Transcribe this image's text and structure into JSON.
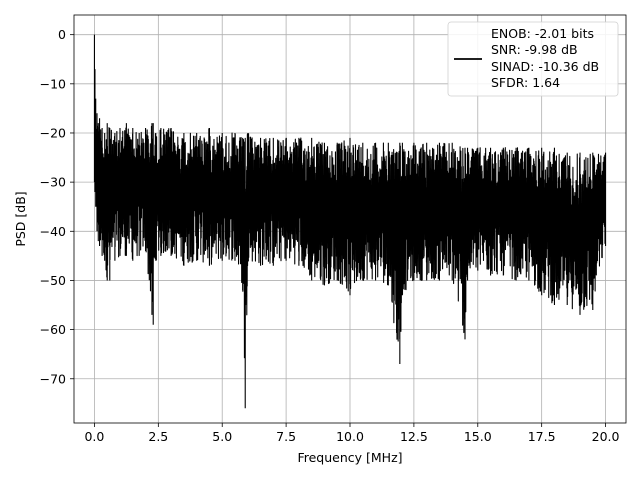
{
  "chart_data": {
    "type": "line",
    "title": "",
    "xlabel": "Frequency [MHz]",
    "ylabel": "PSD [dB]",
    "xlim": [
      -0.8,
      20.8
    ],
    "ylim": [
      -79,
      4
    ],
    "xticks": [
      0.0,
      2.5,
      5.0,
      7.5,
      10.0,
      12.5,
      15.0,
      17.5,
      20.0
    ],
    "xtick_labels": [
      "0.0",
      "2.5",
      "5.0",
      "7.5",
      "10.0",
      "12.5",
      "15.0",
      "17.5",
      "20.0"
    ],
    "yticks": [
      0,
      -10,
      -20,
      -30,
      -40,
      -50,
      -60,
      -70
    ],
    "ytick_labels": [
      "0",
      "−10",
      "−20",
      "−30",
      "−40",
      "−50",
      "−60",
      "−70"
    ],
    "grid": true,
    "legend_position": "top-right",
    "series": [
      {
        "color": "#000000",
        "legend_lines": [
          "ENOB: -2.01 bits",
          "SNR: -9.98 dB",
          "SINAD: -10.36 dB",
          "SFDR: 1.64"
        ],
        "x": [
          0.0,
          0.02,
          0.05,
          0.1,
          0.15,
          0.2,
          0.3,
          0.4,
          0.5,
          0.6,
          0.8,
          1.0,
          1.25,
          1.5,
          1.75,
          2.0,
          2.25,
          2.3,
          2.4,
          2.6,
          3.0,
          3.5,
          4.0,
          4.5,
          5.0,
          5.5,
          5.8,
          5.9,
          6.0,
          6.5,
          7.0,
          7.5,
          8.0,
          8.5,
          9.0,
          9.5,
          10.0,
          10.5,
          11.0,
          11.5,
          11.95,
          12.05,
          12.5,
          13.0,
          13.5,
          14.0,
          14.5,
          14.6,
          15.0,
          15.5,
          16.0,
          16.5,
          17.0,
          17.5,
          18.0,
          18.5,
          19.0,
          19.5,
          20.0
        ],
        "y_upper": [
          0,
          -7,
          -13,
          -16,
          -18,
          -17,
          -19,
          -20,
          -18,
          -19,
          -20,
          -19,
          -18,
          -19,
          -20,
          -19,
          -18,
          -18,
          -20,
          -19,
          -19,
          -20,
          -20,
          -19,
          -20,
          -20,
          -21,
          -21,
          -20,
          -21,
          -21,
          -21,
          -21,
          -21,
          -22,
          -22,
          -21,
          -22,
          -22,
          -22,
          -22,
          -22,
          -22,
          -22,
          -22,
          -22,
          -23,
          -23,
          -23,
          -23,
          -23,
          -23,
          -23,
          -23,
          -23,
          -24,
          -24,
          -24,
          -24
        ],
        "y_lower": [
          -30,
          -32,
          -35,
          -40,
          -42,
          -43,
          -45,
          -46,
          -50,
          -50,
          -46,
          -45,
          -45,
          -46,
          -45,
          -44,
          -57,
          -59,
          -46,
          -45,
          -45,
          -47,
          -46,
          -47,
          -46,
          -46,
          -52,
          -76,
          -46,
          -47,
          -47,
          -46,
          -47,
          -50,
          -51,
          -50,
          -53,
          -50,
          -50,
          -51,
          -67,
          -53,
          -50,
          -50,
          -50,
          -50,
          -62,
          -50,
          -48,
          -49,
          -49,
          -50,
          -50,
          -53,
          -55,
          -55,
          -57,
          -56,
          -43
        ]
      }
    ]
  }
}
